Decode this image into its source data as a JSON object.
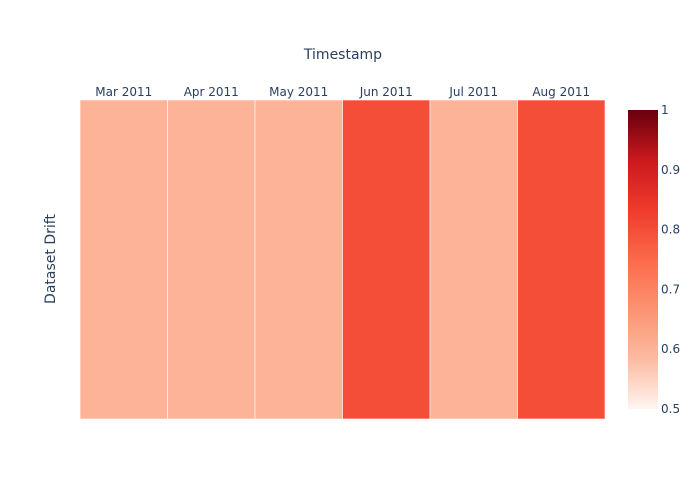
{
  "chart_data": {
    "type": "heatmap",
    "xlabel": "Timestamp",
    "ylabel": "Dataset Drift",
    "x_axis_position": "top",
    "categories": [
      "Mar 2011",
      "Apr 2011",
      "May 2011",
      "Jun 2011",
      "Jul 2011",
      "Aug 2011"
    ],
    "values": [
      0.6,
      0.6,
      0.6,
      0.8,
      0.6,
      0.8
    ],
    "colorscale": {
      "name": "Reds",
      "range": [
        0.5,
        1
      ],
      "ticks": [
        "0.5",
        "0.6",
        "0.7",
        "0.8",
        "0.9",
        "1"
      ],
      "stops": [
        "#fff5f0",
        "#fcbba1",
        "#fc9272",
        "#fb6a4a",
        "#ef3b2c",
        "#cb181d",
        "#67000d"
      ]
    },
    "colorbar_position": "right"
  }
}
